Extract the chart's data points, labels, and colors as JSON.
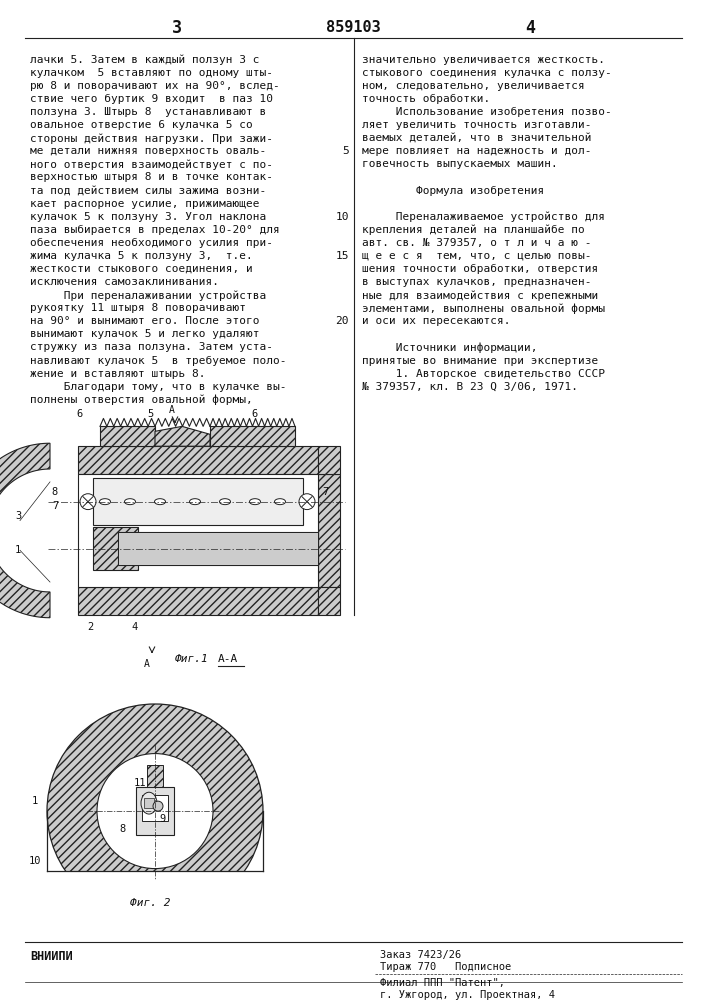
{
  "page_number_left": "3",
  "page_number_center": "859103",
  "page_number_right": "4",
  "left_col_text": [
    "лачки 5. Затем в каждый ползун 3 с",
    "кулачком  5 вставляют по одному шты-",
    "рю 8 и поворачивают их на 90°, вслед-",
    "ствие чего буртик 9 входит  в паз 10",
    "ползуна 3. Штырь 8  устанавливают в",
    "овальное отверстие 6 кулачка 5 со",
    "стороны действия нагрузки. При зажи-",
    "ме детали нижняя поверхность оваль-",
    "ного отверстия взаимодействует с по-",
    "верхностью штыря 8 и в точке контак-",
    "та под действием силы зажима возни-",
    "кает распорное усилие, прижимающее",
    "кулачок 5 к ползуну 3. Угол наклона",
    "паза выбирается в пределах 10-20° для",
    "обеспечения необходимого усилия при-",
    "жима кулачка 5 к ползуну 3,  т.е.",
    "жесткости стыкового соединения, и",
    "исключения самозаклинивания.",
    "     При переналаживании устройства",
    "рукоятку 11 штыря 8 поворачивают",
    "на 90° и вынимают его. После этого",
    "вынимают кулачок 5 и легко удаляют",
    "стружку из паза ползуна. Затем уста-",
    "навливают кулачок 5  в требуемое поло-",
    "жение и вставляют штырь 8.",
    "     Благодари тому, что в кулачке вы-",
    "полнены отверстия овальной формы,"
  ],
  "right_col_text": [
    "значительно увеличивается жесткость.",
    "стыкового соединения кулачка с ползу-",
    "ном, следовательно, увеличивается",
    "точность обработки.",
    "     Использование изобретения позво-",
    "ляет увеличить точность изготавли-",
    "ваемых деталей, что в значительной",
    "мере повлияет на надежность и дол-",
    "говечность выпускаемых машин.",
    "",
    "        Формула изобретения",
    "",
    "     Переналаживаемое устройство для",
    "крепления деталей на планшайбе по",
    "авт. св. № 379357, о т л и ч а ю -",
    "щ е е с я  тем, что, с целью повы-",
    "шения точности обработки, отверстия",
    "в выступах кулачков, предназначен-",
    "ные для взаимодействия с крепежными",
    "элементами, выполнены овальной формы",
    "и оси их пересекаются.",
    "",
    "     Источники информации,",
    "принятые во внимание при экспертизе",
    "     1. Авторское свидетельство СССР",
    "№ 379357, кл. В 23 Q 3/06, 1971."
  ],
  "line_numbers": [
    [
      7,
      "5"
    ],
    [
      12,
      "10"
    ],
    [
      15,
      "15"
    ],
    [
      20,
      "20"
    ]
  ],
  "footer_left": "ВНИИПИ",
  "footer_order": "Заказ 7423/26",
  "footer_tirazh": "Тираж 770   Подписное",
  "footer_filial": "Филиал ППП \"Патент\",",
  "footer_city": "г. Ужгород, ул. Проектная, 4",
  "fig1_caption": "Фиг.1",
  "fig1_section": "А-А",
  "fig2_caption": "Фиг. 2",
  "bg_color": "#ffffff",
  "text_color": "#111111",
  "line_color": "#222222",
  "hatch_color": "#555555",
  "hatch_fill": "#cccccc"
}
